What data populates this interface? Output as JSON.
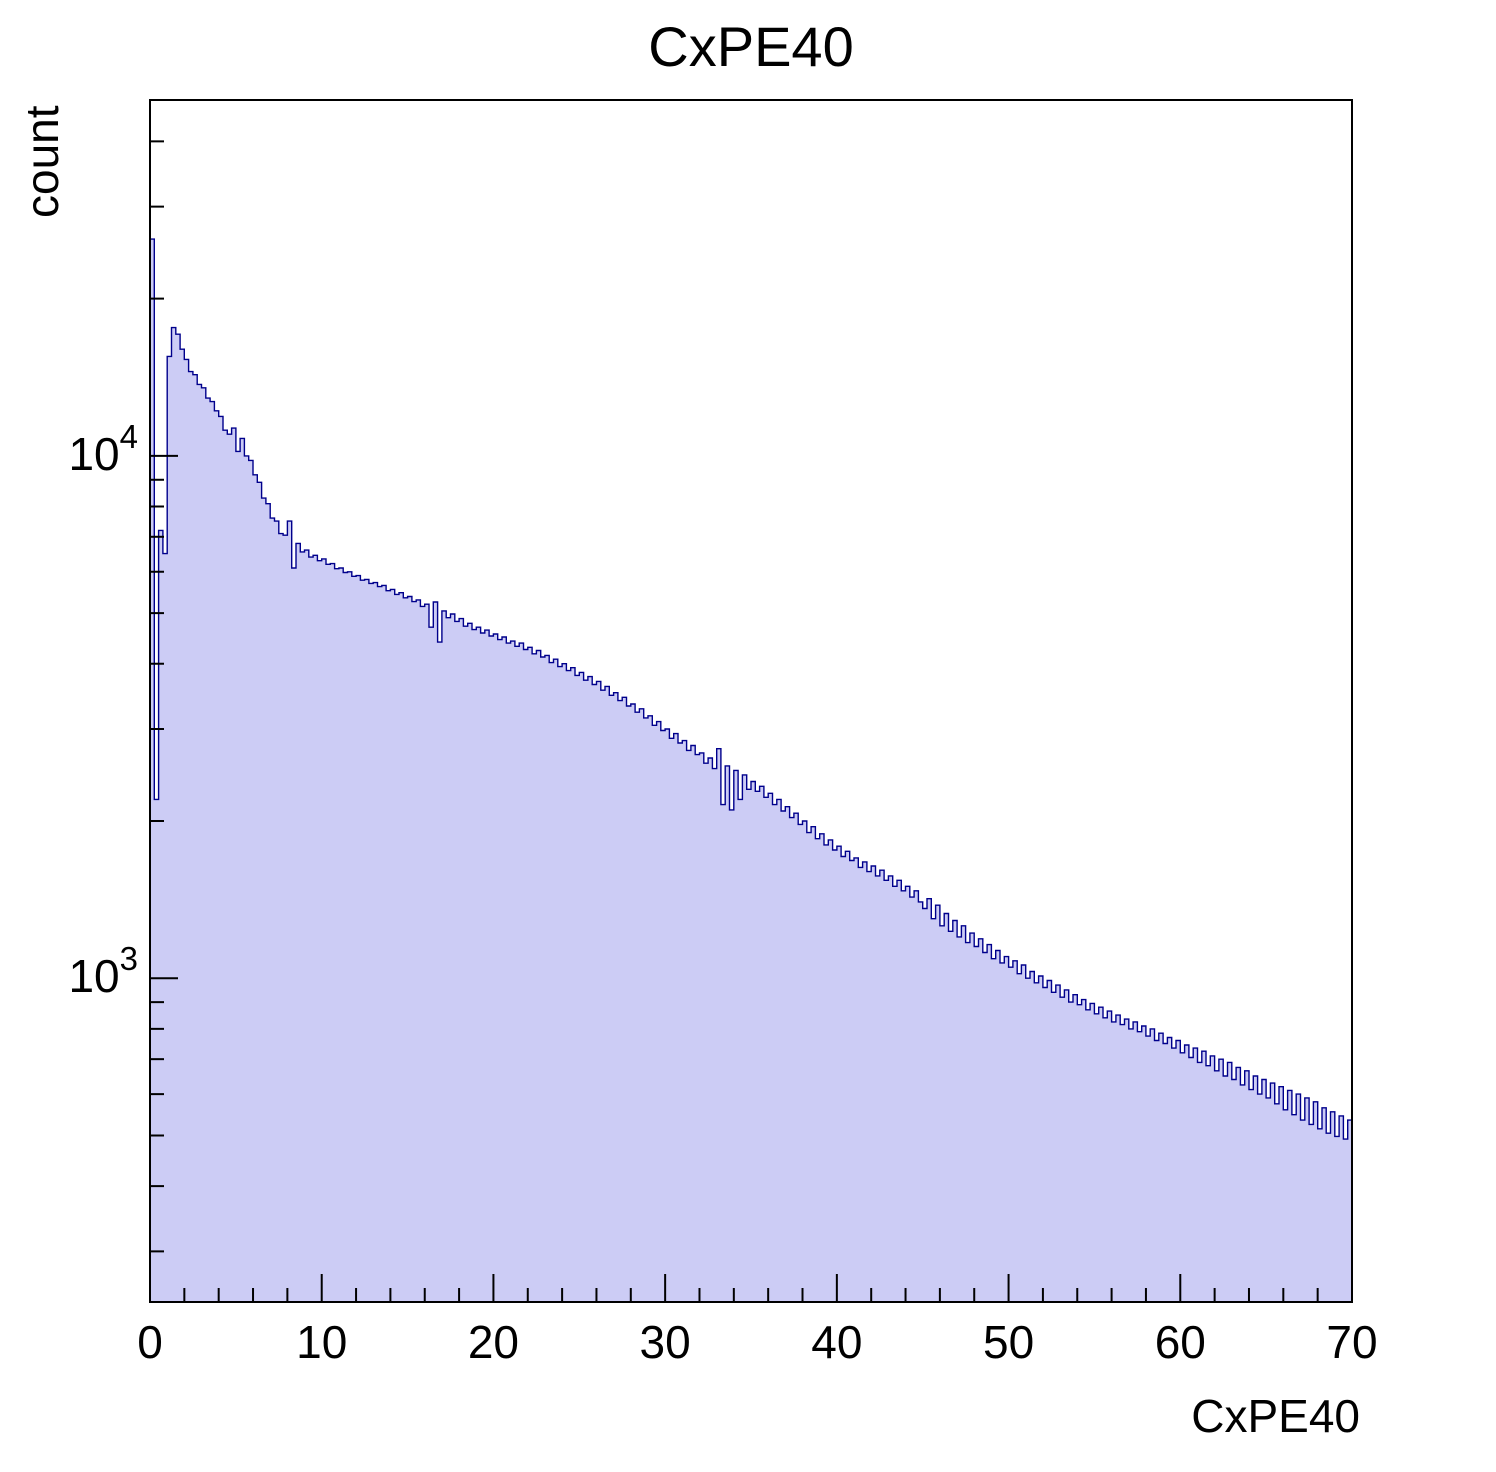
{
  "chart_data": {
    "type": "bar",
    "subtype": "histogram-log-y",
    "title": "CxPE40",
    "xlabel": "CxPE40",
    "ylabel": "count",
    "x_range": [
      0,
      70
    ],
    "y_range": [
      240,
      48000
    ],
    "y_scale": "log",
    "bin_start": 0,
    "bin_width": 0.25,
    "grid": false,
    "legend": "none",
    "fill_color": "#ccccf5",
    "line_color": "#00008c",
    "frame_color": "#000000",
    "x_major_ticks": [
      0,
      10,
      20,
      30,
      40,
      50,
      60,
      70
    ],
    "x_tick_labels": [
      "0",
      "10",
      "20",
      "30",
      "40",
      "50",
      "60",
      "70"
    ],
    "x_minor_step": 2,
    "y_major_ticks": [
      1000,
      10000
    ],
    "y_major_labels": [
      {
        "base": "10",
        "exp": "3"
      },
      {
        "base": "10",
        "exp": "4"
      }
    ],
    "values": [
      26000,
      2200,
      7200,
      6500,
      15500,
      17600,
      17100,
      16000,
      15300,
      14500,
      14300,
      13700,
      13500,
      12900,
      12700,
      12200,
      11900,
      11200,
      11000,
      11300,
      10200,
      10800,
      10000,
      9800,
      9200,
      8900,
      8300,
      8100,
      7600,
      7500,
      7100,
      7050,
      7500,
      6100,
      6800,
      6550,
      6600,
      6400,
      6450,
      6300,
      6350,
      6200,
      6220,
      6080,
      6100,
      5980,
      6000,
      5880,
      5900,
      5780,
      5800,
      5700,
      5720,
      5620,
      5650,
      5520,
      5550,
      5430,
      5470,
      5350,
      5380,
      5260,
      5300,
      5150,
      5200,
      4700,
      5250,
      4400,
      5050,
      4900,
      4980,
      4820,
      4880,
      4720,
      4780,
      4650,
      4700,
      4580,
      4640,
      4520,
      4560,
      4450,
      4500,
      4380,
      4420,
      4320,
      4380,
      4260,
      4300,
      4180,
      4240,
      4120,
      4150,
      4020,
      4080,
      3950,
      4000,
      3880,
      3930,
      3800,
      3850,
      3720,
      3780,
      3650,
      3700,
      3560,
      3620,
      3480,
      3520,
      3400,
      3450,
      3320,
      3350,
      3230,
      3280,
      3150,
      3180,
      3050,
      3100,
      2980,
      3000,
      2880,
      2940,
      2820,
      2850,
      2730,
      2790,
      2680,
      2700,
      2580,
      2640,
      2520,
      2750,
      2150,
      2550,
      2100,
      2500,
      2200,
      2450,
      2300,
      2380,
      2280,
      2330,
      2220,
      2260,
      2150,
      2200,
      2090,
      2130,
      2030,
      2070,
      1970,
      2000,
      1900,
      1950,
      1850,
      1890,
      1800,
      1840,
      1760,
      1790,
      1710,
      1750,
      1680,
      1700,
      1630,
      1670,
      1600,
      1640,
      1570,
      1610,
      1540,
      1570,
      1500,
      1540,
      1470,
      1500,
      1430,
      1470,
      1400,
      1360,
      1420,
      1300,
      1380,
      1260,
      1330,
      1230,
      1290,
      1200,
      1260,
      1170,
      1220,
      1150,
      1190,
      1120,
      1160,
      1090,
      1130,
      1070,
      1100,
      1050,
      1080,
      1020,
      1060,
      1000,
      1030,
      980,
      1010,
      960,
      990,
      940,
      970,
      920,
      950,
      900,
      930,
      890,
      910,
      870,
      895,
      855,
      880,
      840,
      865,
      825,
      850,
      815,
      835,
      800,
      825,
      790,
      810,
      775,
      800,
      760,
      785,
      750,
      770,
      735,
      760,
      720,
      745,
      705,
      735,
      690,
      725,
      680,
      710,
      665,
      700,
      650,
      690,
      640,
      675,
      625,
      665,
      612,
      650,
      600,
      640,
      590,
      630,
      575,
      620,
      560,
      610,
      548,
      600,
      535,
      590,
      525,
      580,
      515,
      565,
      505,
      555,
      498,
      545,
      492,
      535
    ]
  }
}
